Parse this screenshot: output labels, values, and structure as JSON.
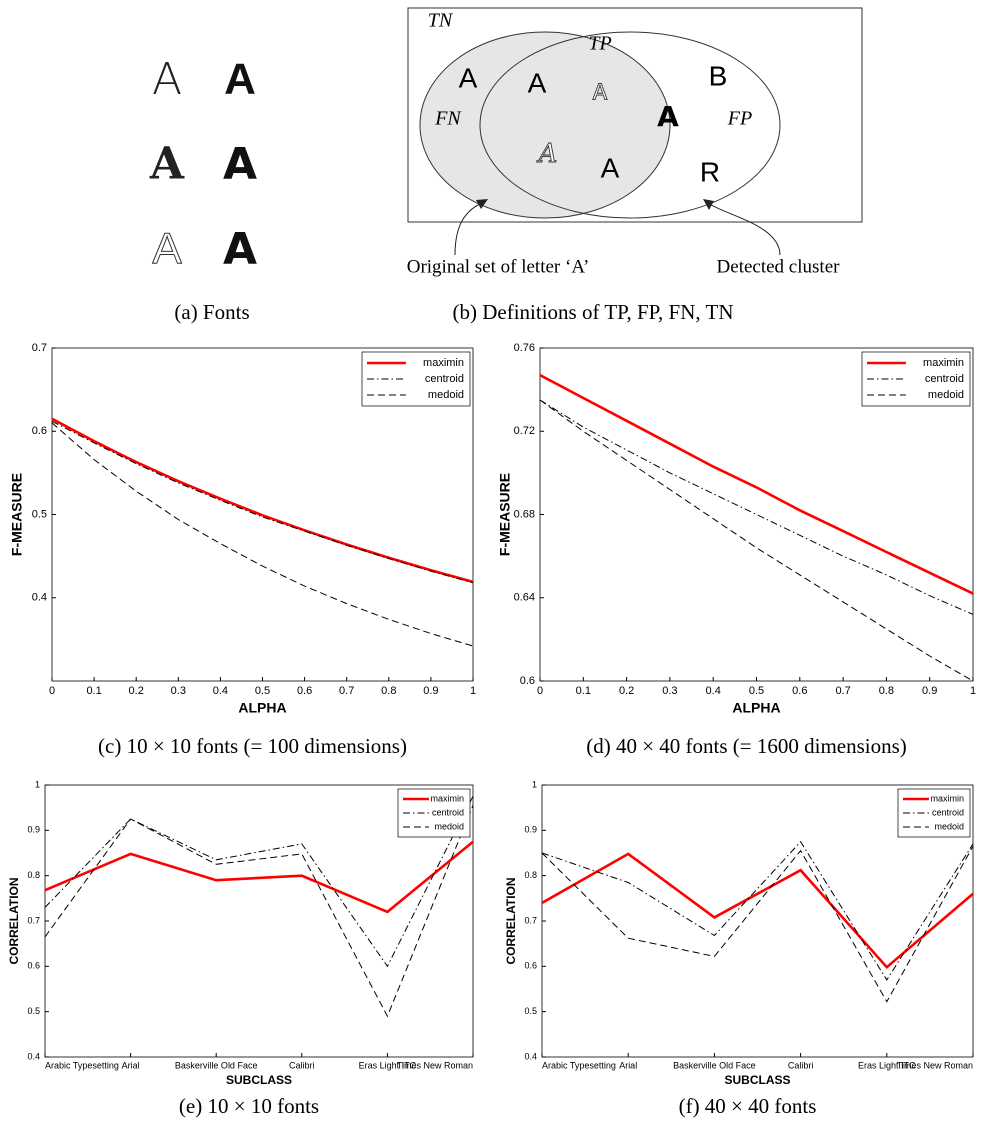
{
  "fonts_panel": {
    "letters": [
      "A",
      "A",
      "A",
      "A",
      "A",
      "A"
    ],
    "caption": "(a) Fonts"
  },
  "venn": {
    "regions": {
      "tn": "TN",
      "tp": "TP",
      "fn": "FN",
      "fp": "FP"
    },
    "letters": [
      "A",
      "A",
      "A",
      "A",
      "A",
      "A",
      "B",
      "R"
    ],
    "annotations": [
      "Original set of letter ‘A’",
      "Detected cluster"
    ],
    "caption": "(b) Definitions of TP, FP, FN, TN"
  },
  "chart_data": [
    {
      "type": "line",
      "caption": "(c) 10 × 10 fonts (= 100 dimensions)",
      "xlabel": "ALPHA",
      "ylabel": "F-MEASURE",
      "x": [
        0,
        0.1,
        0.2,
        0.3,
        0.4,
        0.5,
        0.6,
        0.7,
        0.8,
        0.9,
        1
      ],
      "xlim": [
        0,
        1
      ],
      "xticks": [
        0,
        0.1,
        0.2,
        0.3,
        0.4,
        0.5,
        0.6,
        0.7,
        0.8,
        0.9,
        1
      ],
      "ylim": [
        0.3,
        0.7
      ],
      "yticks": [
        0.4,
        0.5,
        0.6,
        0.7
      ],
      "legend": "upper right",
      "series": [
        {
          "name": "maximin",
          "color": "#ff0000",
          "linestyle": "solid",
          "values": [
            0.615,
            0.588,
            0.563,
            0.54,
            0.519,
            0.499,
            0.481,
            0.464,
            0.448,
            0.433,
            0.419
          ]
        },
        {
          "name": "centroid",
          "color": "#000000",
          "linestyle": "dashdot",
          "values": [
            0.612,
            0.586,
            0.561,
            0.538,
            0.517,
            0.497,
            0.48,
            0.463,
            0.447,
            0.432,
            0.418
          ]
        },
        {
          "name": "medoid",
          "color": "#000000",
          "linestyle": "dashed",
          "values": [
            0.61,
            0.566,
            0.528,
            0.494,
            0.465,
            0.438,
            0.414,
            0.393,
            0.374,
            0.357,
            0.342
          ]
        }
      ]
    },
    {
      "type": "line",
      "caption": "(d) 40 × 40 fonts (= 1600 dimensions)",
      "xlabel": "ALPHA",
      "ylabel": "F-MEASURE",
      "x": [
        0,
        0.1,
        0.2,
        0.3,
        0.4,
        0.5,
        0.6,
        0.7,
        0.8,
        0.9,
        1
      ],
      "xlim": [
        0,
        1
      ],
      "xticks": [
        0,
        0.1,
        0.2,
        0.3,
        0.4,
        0.5,
        0.6,
        0.7,
        0.8,
        0.9,
        1
      ],
      "ylim": [
        0.6,
        0.76
      ],
      "yticks": [
        0.6,
        0.64,
        0.68,
        0.72,
        0.76
      ],
      "legend": "upper right",
      "series": [
        {
          "name": "maximin",
          "color": "#ff0000",
          "linestyle": "solid",
          "values": [
            0.747,
            0.736,
            0.725,
            0.714,
            0.703,
            0.693,
            0.682,
            0.672,
            0.662,
            0.652,
            0.642
          ]
        },
        {
          "name": "centroid",
          "color": "#000000",
          "linestyle": "dashdot",
          "values": [
            0.735,
            0.722,
            0.711,
            0.7,
            0.69,
            0.68,
            0.67,
            0.66,
            0.651,
            0.641,
            0.632
          ]
        },
        {
          "name": "medoid",
          "color": "#000000",
          "linestyle": "dashed",
          "values": [
            0.735,
            0.72,
            0.706,
            0.692,
            0.678,
            0.664,
            0.651,
            0.638,
            0.625,
            0.612,
            0.6
          ]
        }
      ]
    },
    {
      "type": "line",
      "caption": "(e) 10 × 10 fonts",
      "xlabel": "SUBCLASS",
      "ylabel": "CORRELATION",
      "categories": [
        "Arabic Typesetting",
        "Arial",
        "Baskerville Old Face",
        "Calibri",
        "Eras Light ITC",
        "Times New Roman"
      ],
      "ylim": [
        0.4,
        1
      ],
      "yticks": [
        0.4,
        0.5,
        0.6,
        0.7,
        0.8,
        0.9,
        1
      ],
      "legend": "upper right",
      "series": [
        {
          "name": "maximin",
          "color": "#ff0000",
          "linestyle": "solid",
          "values": [
            0.768,
            0.848,
            0.79,
            0.8,
            0.72,
            0.875
          ]
        },
        {
          "name": "centroid",
          "color": "#000000",
          "linestyle": "dashdot",
          "values": [
            0.73,
            0.925,
            0.835,
            0.87,
            0.6,
            0.975
          ]
        },
        {
          "name": "medoid",
          "color": "#000000",
          "linestyle": "dashed",
          "values": [
            0.665,
            0.925,
            0.825,
            0.848,
            0.49,
            0.955
          ]
        }
      ]
    },
    {
      "type": "line",
      "caption": "(f) 40 × 40 fonts",
      "xlabel": "SUBCLASS",
      "ylabel": "CORRELATION",
      "categories": [
        "Arabic Typesetting",
        "Arial",
        "Baskerville Old Face",
        "Calibri",
        "Eras Light ITC",
        "Times New Roman"
      ],
      "ylim": [
        0.4,
        1
      ],
      "yticks": [
        0.4,
        0.5,
        0.6,
        0.7,
        0.8,
        0.9,
        1
      ],
      "legend": "upper right",
      "series": [
        {
          "name": "maximin",
          "color": "#ff0000",
          "linestyle": "solid",
          "values": [
            0.74,
            0.848,
            0.708,
            0.812,
            0.598,
            0.76
          ]
        },
        {
          "name": "centroid",
          "color": "#000000",
          "linestyle": "dashdot",
          "values": [
            0.85,
            0.785,
            0.668,
            0.875,
            0.57,
            0.87
          ]
        },
        {
          "name": "medoid",
          "color": "#000000",
          "linestyle": "dashed",
          "values": [
            0.85,
            0.662,
            0.622,
            0.855,
            0.522,
            0.865
          ]
        }
      ]
    }
  ]
}
